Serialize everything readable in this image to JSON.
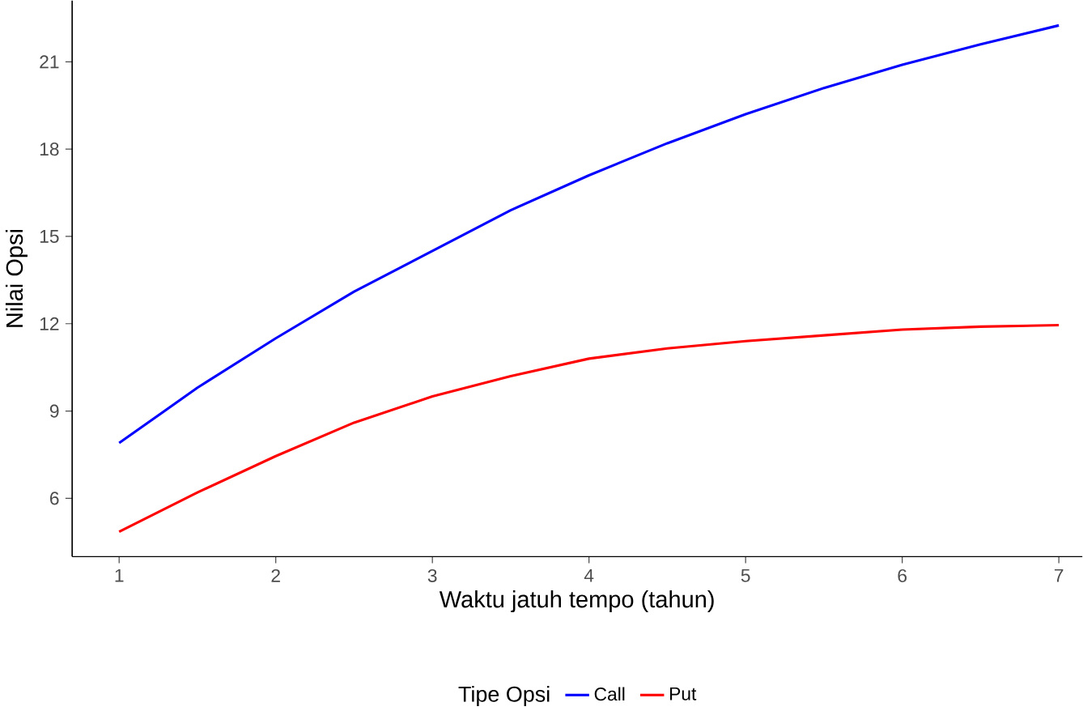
{
  "chart_data": {
    "type": "line",
    "xlabel": "Waktu jatuh tempo (tahun)",
    "ylabel": "Nilai Opsi",
    "legend_title": "Tipe Opsi",
    "legend": "bottom",
    "grid": false,
    "line_style": "solid",
    "marker": "none",
    "x": [
      1,
      1.5,
      2,
      2.5,
      3,
      3.5,
      4,
      4.5,
      5,
      5.5,
      6,
      6.5,
      7
    ],
    "xlim": [
      0.7,
      7.15
    ],
    "ylim": [
      4,
      23.1
    ],
    "xticks": [
      1,
      2,
      3,
      4,
      5,
      6,
      7
    ],
    "yticks": [
      6,
      9,
      12,
      15,
      18,
      21
    ],
    "series": [
      {
        "name": "Call",
        "color": "#0000ff",
        "values": [
          7.9,
          9.8,
          11.5,
          13.1,
          14.5,
          15.9,
          17.1,
          18.2,
          19.2,
          20.1,
          20.9,
          21.6,
          22.25
        ]
      },
      {
        "name": "Put",
        "color": "#ff0000",
        "values": [
          4.85,
          6.2,
          7.45,
          8.6,
          9.5,
          10.2,
          10.8,
          11.15,
          11.4,
          11.6,
          11.8,
          11.9,
          11.95
        ]
      }
    ]
  }
}
